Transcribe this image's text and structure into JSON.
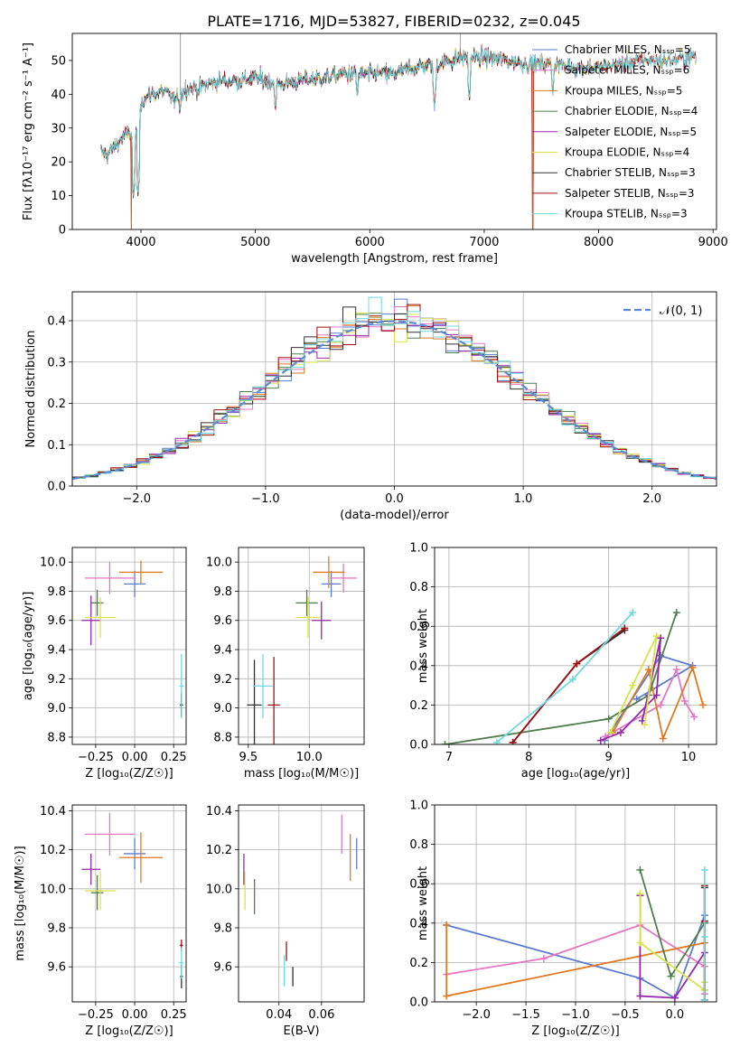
{
  "figure": {
    "title": "PLATE=1716, MJD=53827, FIBERID=0232, z=0.045"
  },
  "chart_data": [
    {
      "id": "spectrum",
      "type": "line",
      "xlabel": "wavelength [Angstrom, rest frame]",
      "ylabel": "Flux [fλ10⁻¹⁷ erg cm⁻² s⁻¹ A⁻¹]",
      "xlim": [
        3400,
        9030
      ],
      "ylim": [
        0,
        58
      ],
      "xticks": [
        4000,
        5000,
        6000,
        7000,
        8000,
        9000
      ],
      "yticks": [
        0,
        10,
        20,
        30,
        40,
        50
      ],
      "grid": false,
      "legend_position": "top-right",
      "series": [
        {
          "name": "Chabrier MILES, N_SSP=5",
          "color": "#5a7bd0"
        },
        {
          "name": "Salpeter MILES, N_SSP=6",
          "color": "#e377c2"
        },
        {
          "name": "Kroupa MILES, N_SSP=5",
          "color": "#dd7a22"
        },
        {
          "name": "Chabrier ELODIE, N_SSP=4",
          "color": "#4f7f4f"
        },
        {
          "name": "Salpeter ELODIE, N_SSP=5",
          "color": "#9428a8"
        },
        {
          "name": "Kroupa ELODIE, N_SSP=4",
          "color": "#d8e34a"
        },
        {
          "name": "Chabrier STELIB, N_SSP=3",
          "color": "#303030"
        },
        {
          "name": "Salpeter STELIB, N_SSP=3",
          "color": "#a01010"
        },
        {
          "name": "Kroupa STELIB, N_SSP=3",
          "color": "#6fd8e0"
        }
      ],
      "continuum": {
        "x": [
          3650,
          3700,
          3800,
          3900,
          3950,
          4000,
          4100,
          4200,
          4300,
          4400,
          4500,
          4600,
          4700,
          4800,
          4900,
          5000,
          5200,
          5400,
          5600,
          5800,
          6000,
          6200,
          6400,
          6600,
          6800,
          7000,
          7200,
          7400,
          7600,
          7800,
          8000,
          8200,
          8400,
          8600,
          8800
        ],
        "y": [
          23,
          22,
          26,
          29,
          25,
          38,
          40,
          41,
          38,
          42,
          42,
          43,
          44,
          44,
          44,
          45,
          43,
          44,
          45,
          46,
          46,
          46,
          48,
          49,
          51,
          51,
          50,
          49,
          49,
          48,
          48,
          49,
          50,
          50,
          51
        ]
      },
      "spectrum_features": {
        "dropouts_x": [
          3915,
          7425
        ],
        "spikes_x": [
          4345,
          6790
        ],
        "dips": [
          {
            "x": 3935,
            "y": 9
          },
          {
            "x": 3975,
            "y": 10
          },
          {
            "x": 4340,
            "y": 34
          },
          {
            "x": 5175,
            "y": 35
          },
          {
            "x": 5890,
            "y": 39
          },
          {
            "x": 6565,
            "y": 36
          },
          {
            "x": 6870,
            "y": 38
          },
          {
            "x": 7600,
            "y": 40
          }
        ]
      }
    },
    {
      "id": "residuals",
      "type": "bar",
      "xlabel": "(data-model)/error",
      "ylabel": "Normed distribution",
      "xlim": [
        -2.5,
        2.5
      ],
      "ylim": [
        0,
        0.47
      ],
      "xticks": [
        -2,
        -1,
        0,
        1,
        2
      ],
      "yticks": [
        0.0,
        0.1,
        0.2,
        0.3,
        0.4
      ],
      "grid": true,
      "legend_position": "top-right",
      "reference_curve": {
        "name": "𝒩(0, 1)",
        "mean": 0,
        "sigma": 1,
        "color": "#5b8bd6"
      },
      "bin_width": 0.1,
      "histogram_colors": [
        "#5a7bd0",
        "#e377c2",
        "#dd7a22",
        "#4f7f4f",
        "#9428a8",
        "#d8e34a",
        "#303030",
        "#a01010",
        "#6fd8e0"
      ]
    },
    {
      "id": "age-vs-Z",
      "type": "scatter",
      "xlabel": "Z [log₁₀(Z/Z☉)]",
      "ylabel": "age  [log₁₀(age/yr)]",
      "xlim": [
        -0.4,
        0.33
      ],
      "ylim": [
        8.75,
        10.1
      ],
      "xticks": [
        -0.25,
        0.0,
        0.25
      ],
      "yticks": [
        8.8,
        9.0,
        9.2,
        9.4,
        9.6,
        9.8,
        10.0
      ],
      "grid": true,
      "points": [
        {
          "color": "#5a7bd0",
          "x": 0.0,
          "y": 9.85,
          "xerr": 0.07,
          "yerr": 0.09
        },
        {
          "color": "#e377c2",
          "x": -0.16,
          "y": 9.89,
          "xerr": 0.16,
          "yerr": 0.11
        },
        {
          "color": "#dd7a22",
          "x": 0.04,
          "y": 9.93,
          "xerr": 0.14,
          "yerr": 0.08
        },
        {
          "color": "#4f7f4f",
          "x": -0.24,
          "y": 9.72,
          "xerr": 0.04,
          "yerr": 0.09
        },
        {
          "color": "#9428a8",
          "x": -0.28,
          "y": 9.6,
          "xerr": 0.06,
          "yerr": 0.17
        },
        {
          "color": "#d8e34a",
          "x": -0.22,
          "y": 9.62,
          "xerr": 0.1,
          "yerr": 0.14
        },
        {
          "color": "#303030",
          "x": 0.3,
          "y": 9.02,
          "xerr": 0.01,
          "yerr": 0.08
        },
        {
          "color": "#a01010",
          "x": 0.3,
          "y": 9.02,
          "xerr": 0.01,
          "yerr": 0.08
        },
        {
          "color": "#6fd8e0",
          "x": 0.3,
          "y": 9.15,
          "xerr": 0.015,
          "yerr": 0.22
        }
      ]
    },
    {
      "id": "age-vs-mass",
      "type": "scatter",
      "xlabel": "mass [log₁₀(M/M☉)]",
      "ylabel": "",
      "xlim": [
        9.42,
        10.45
      ],
      "ylim": [
        8.75,
        10.1
      ],
      "xticks": [
        9.5,
        10.0
      ],
      "yticks": [
        8.8,
        9.0,
        9.2,
        9.4,
        9.6,
        9.8,
        10.0
      ],
      "grid": true,
      "points": [
        {
          "color": "#5a7bd0",
          "x": 10.18,
          "y": 9.85,
          "xerr": 0.08,
          "yerr": 0.09
        },
        {
          "color": "#e377c2",
          "x": 10.28,
          "y": 9.89,
          "xerr": 0.11,
          "yerr": 0.1
        },
        {
          "color": "#dd7a22",
          "x": 10.16,
          "y": 9.93,
          "xerr": 0.13,
          "yerr": 0.11
        },
        {
          "color": "#4f7f4f",
          "x": 9.98,
          "y": 9.72,
          "xerr": 0.09,
          "yerr": 0.09
        },
        {
          "color": "#9428a8",
          "x": 10.1,
          "y": 9.6,
          "xerr": 0.08,
          "yerr": 0.13
        },
        {
          "color": "#d8e34a",
          "x": 9.99,
          "y": 9.62,
          "xerr": 0.1,
          "yerr": 0.14
        },
        {
          "color": "#303030",
          "x": 9.55,
          "y": 9.02,
          "xerr": 0.06,
          "yerr": 0.31
        },
        {
          "color": "#a01010",
          "x": 9.71,
          "y": 9.02,
          "xerr": 0.05,
          "yerr": 0.33
        },
        {
          "color": "#6fd8e0",
          "x": 9.62,
          "y": 9.15,
          "xerr": 0.08,
          "yerr": 0.22
        }
      ]
    },
    {
      "id": "weight-vs-age",
      "type": "line",
      "xlabel": "age  [log₁₀(age/yr)]",
      "ylabel": "mass weight",
      "xlim": [
        6.82,
        10.35
      ],
      "ylim": [
        0,
        1.0
      ],
      "xticks": [
        7,
        8,
        9,
        10
      ],
      "yticks": [
        0.0,
        0.2,
        0.4,
        0.6,
        0.8,
        1.0
      ],
      "grid": true,
      "series": [
        {
          "color": "#5a7bd0",
          "x": [
            8.95,
            9.65,
            10.05,
            9.35
          ],
          "y": [
            0.02,
            0.45,
            0.4,
            0.23
          ]
        },
        {
          "color": "#e377c2",
          "x": [
            8.96,
            9.65,
            9.85,
            9.95,
            10.07
          ],
          "y": [
            0.04,
            0.2,
            0.38,
            0.22,
            0.14
          ]
        },
        {
          "color": "#dd7a22",
          "x": [
            9.05,
            9.5,
            9.68,
            10.05,
            10.18
          ],
          "y": [
            0.06,
            0.38,
            0.03,
            0.39,
            0.2
          ]
        },
        {
          "color": "#4f7f4f",
          "x": [
            6.95,
            9.0,
            9.5,
            9.85
          ],
          "y": [
            0.0,
            0.13,
            0.25,
            0.67
          ]
        },
        {
          "color": "#9428a8",
          "x": [
            8.9,
            9.15,
            9.6,
            9.65,
            9.42
          ],
          "y": [
            0.02,
            0.06,
            0.25,
            0.54,
            0.12
          ]
        },
        {
          "color": "#d8e34a",
          "x": [
            9.02,
            9.3,
            9.6,
            9.45
          ],
          "y": [
            0.06,
            0.3,
            0.55,
            0.1
          ]
        },
        {
          "color": "#303030",
          "x": [
            7.8,
            8.6,
            9.2
          ],
          "y": [
            0.01,
            0.41,
            0.58
          ]
        },
        {
          "color": "#a01010",
          "x": [
            7.8,
            8.6,
            9.2
          ],
          "y": [
            0.01,
            0.41,
            0.59
          ]
        },
        {
          "color": "#6fd8e0",
          "x": [
            7.6,
            8.55,
            9.3
          ],
          "y": [
            0.01,
            0.33,
            0.67
          ]
        }
      ]
    },
    {
      "id": "mass-vs-Z",
      "type": "scatter",
      "xlabel": "Z [log₁₀(Z/Z☉)]",
      "ylabel": "mass [log₁₀(M/M☉)]",
      "xlim": [
        -0.4,
        0.33
      ],
      "ylim": [
        9.42,
        10.43
      ],
      "xticks": [
        -0.25,
        0.0,
        0.25
      ],
      "yticks": [
        9.6,
        9.8,
        10.0,
        10.2,
        10.4
      ],
      "grid": true,
      "points": [
        {
          "color": "#5a7bd0",
          "x": 0.0,
          "y": 10.18,
          "xerr": 0.07,
          "yerr": 0.08
        },
        {
          "color": "#e377c2",
          "x": -0.16,
          "y": 10.28,
          "xerr": 0.16,
          "yerr": 0.11
        },
        {
          "color": "#dd7a22",
          "x": 0.04,
          "y": 10.16,
          "xerr": 0.14,
          "yerr": 0.13
        },
        {
          "color": "#4f7f4f",
          "x": -0.24,
          "y": 9.98,
          "xerr": 0.04,
          "yerr": 0.09
        },
        {
          "color": "#9428a8",
          "x": -0.28,
          "y": 10.1,
          "xerr": 0.06,
          "yerr": 0.08
        },
        {
          "color": "#d8e34a",
          "x": -0.22,
          "y": 9.99,
          "xerr": 0.1,
          "yerr": 0.1
        },
        {
          "color": "#303030",
          "x": 0.3,
          "y": 9.55,
          "xerr": 0.01,
          "yerr": 0.06
        },
        {
          "color": "#a01010",
          "x": 0.3,
          "y": 9.71,
          "xerr": 0.01,
          "yerr": 0.03
        },
        {
          "color": "#6fd8e0",
          "x": 0.3,
          "y": 9.62,
          "xerr": 0.015,
          "yerr": 0.08
        }
      ]
    },
    {
      "id": "mass-vs-EBV",
      "type": "scatter",
      "xlabel": "E(B-V)",
      "ylabel": "",
      "xlim": [
        0.021,
        0.08
      ],
      "ylim": [
        9.42,
        10.43
      ],
      "xticks": [
        0.04,
        0.06
      ],
      "yticks": [
        9.6,
        9.8,
        10.0,
        10.2,
        10.4
      ],
      "grid": true,
      "points": [
        {
          "color": "#5a7bd0",
          "x": 0.0765,
          "y": 10.18,
          "xerr": 0,
          "yerr": 0.08
        },
        {
          "color": "#e377c2",
          "x": 0.0695,
          "y": 10.28,
          "xerr": 0,
          "yerr": 0.1
        },
        {
          "color": "#dd7a22",
          "x": 0.0735,
          "y": 10.16,
          "xerr": 0,
          "yerr": 0.12
        },
        {
          "color": "#4f7f4f",
          "x": 0.0285,
          "y": 9.96,
          "xerr": 0,
          "yerr": 0.09
        },
        {
          "color": "#9428a8",
          "x": 0.0235,
          "y": 10.1,
          "xerr": 0,
          "yerr": 0.08
        },
        {
          "color": "#d8e34a",
          "x": 0.024,
          "y": 9.99,
          "xerr": 0,
          "yerr": 0.1
        },
        {
          "color": "#303030",
          "x": 0.0465,
          "y": 9.55,
          "xerr": 0,
          "yerr": 0.05
        },
        {
          "color": "#a01010",
          "x": 0.0435,
          "y": 9.68,
          "xerr": 0,
          "yerr": 0.05
        },
        {
          "color": "#6fd8e0",
          "x": 0.0425,
          "y": 9.58,
          "xerr": 0,
          "yerr": 0.08
        }
      ]
    },
    {
      "id": "weight-vs-Z",
      "type": "line",
      "xlabel": "Z [log₁₀(Z/Z☉)]",
      "ylabel": "mass weight",
      "xlim": [
        -2.42,
        0.42
      ],
      "ylim": [
        0,
        1.0
      ],
      "xticks": [
        -2.0,
        -1.5,
        -1.0,
        -0.5,
        0.0
      ],
      "yticks": [
        0.0,
        0.2,
        0.4,
        0.6,
        0.8,
        1.0
      ],
      "grid": true,
      "series": [
        {
          "color": "#5a7bd0",
          "x": [
            -2.3,
            -0.35,
            0.0,
            0.3
          ],
          "y": [
            0.39,
            0.12,
            0.02,
            0.44
          ]
        },
        {
          "color": "#e377c2",
          "x": [
            -2.3,
            -1.32,
            -0.35,
            0.3,
            0.3
          ],
          "y": [
            0.14,
            0.22,
            0.39,
            0.18,
            0.04
          ]
        },
        {
          "color": "#dd7a22",
          "x": [
            -2.3,
            -2.3,
            0.3,
            0.3
          ],
          "y": [
            0.39,
            0.03,
            0.3,
            0.06
          ]
        },
        {
          "color": "#4f7f4f",
          "x": [
            -0.35,
            -0.04,
            0.3
          ],
          "y": [
            0.67,
            0.13,
            0.4
          ]
        },
        {
          "color": "#9428a8",
          "x": [
            -0.35,
            -0.35,
            0.0,
            0.3
          ],
          "y": [
            0.54,
            0.03,
            0.02,
            0.25
          ]
        },
        {
          "color": "#d8e34a",
          "x": [
            -0.35,
            -0.35,
            0.3,
            0.3
          ],
          "y": [
            0.55,
            0.3,
            0.06,
            0.1
          ]
        },
        {
          "color": "#303030",
          "x": [
            0.3,
            0.3,
            0.3
          ],
          "y": [
            0.01,
            0.41,
            0.58
          ]
        },
        {
          "color": "#a01010",
          "x": [
            0.3,
            0.3,
            0.3
          ],
          "y": [
            0.01,
            0.41,
            0.59
          ]
        },
        {
          "color": "#6fd8e0",
          "x": [
            0.3,
            0.3,
            0.3
          ],
          "y": [
            0.01,
            0.33,
            0.67
          ]
        }
      ]
    }
  ]
}
